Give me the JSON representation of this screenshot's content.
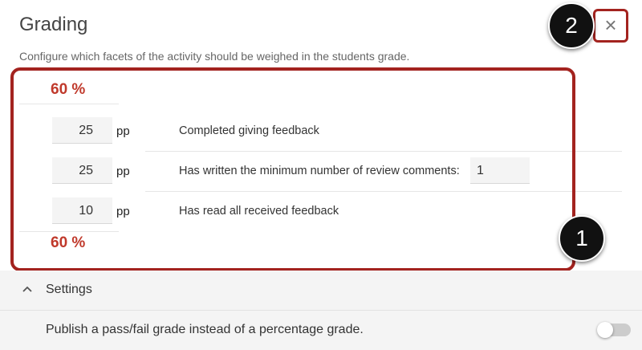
{
  "header": {
    "title": "Grading",
    "subtitle": "Configure which facets of the activity should be weighed in the students grade.",
    "close_label": "×"
  },
  "grading": {
    "total_top": "60 %",
    "total_bottom": "60 %",
    "unit": "pp",
    "rows": [
      {
        "points": "25",
        "label": "Completed giving feedback"
      },
      {
        "points": "25",
        "label": "Has written the minimum number of review comments:",
        "extra_value": "1"
      },
      {
        "points": "10",
        "label": "Has read all received feedback"
      }
    ]
  },
  "settings": {
    "title": "Settings",
    "publish_label": "Publish a pass/fail grade instead of a percentage grade.",
    "publish_enabled": false
  },
  "annotations": {
    "badge_1": "1",
    "badge_2": "2",
    "highlight_color": "#a3231f"
  }
}
